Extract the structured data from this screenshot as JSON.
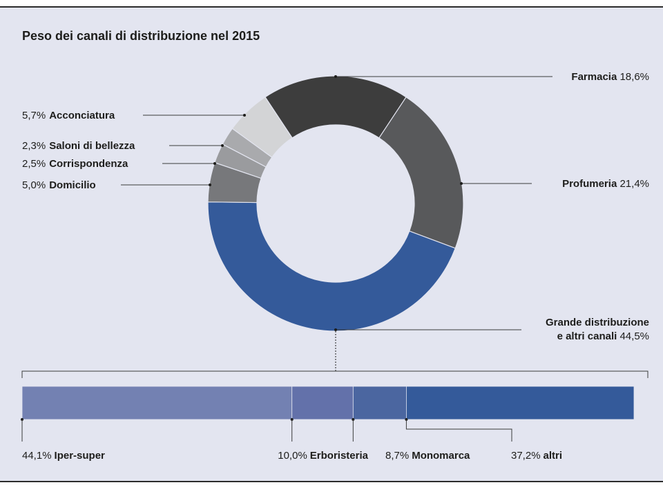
{
  "chart_data": [
    {
      "type": "pie",
      "subtype": "donut",
      "title": "Peso dei canali di distribuzione nel 2015",
      "categories": [
        "Farmacia",
        "Profumeria",
        "Grande distribuzione e altri canali",
        "Domicilio",
        "Corrispondenza",
        "Saloni di bellezza",
        "Acconciatura"
      ],
      "values": [
        18.6,
        21.4,
        44.5,
        5.0,
        2.5,
        2.3,
        5.7
      ],
      "value_labels": [
        "18,6%",
        "21,4%",
        "44,5%",
        "5,0%",
        "2,5%",
        "2,3%",
        "5,7%"
      ],
      "label_lines": [
        [
          "Farmacia"
        ],
        [
          "Profumeria"
        ],
        [
          "Grande distribuzione",
          "e altri canali"
        ],
        [
          "Domicilio"
        ],
        [
          "Corrispondenza"
        ],
        [
          "Saloni di bellezza"
        ],
        [
          "Acconciatura"
        ]
      ],
      "colors": [
        "#3d3d3d",
        "#58595b",
        "#345a9a",
        "#77787b",
        "#9a9b9e",
        "#a9aaad",
        "#d3d4d6"
      ]
    },
    {
      "type": "bar",
      "subtype": "stacked-horizontal",
      "breakdown_of": "Grande distribuzione e altri canali",
      "categories": [
        "Iper-super",
        "Erboristeria",
        "Monomarca",
        "altri"
      ],
      "values": [
        44.1,
        10.0,
        8.7,
        37.2
      ],
      "value_labels": [
        "44,1%",
        "10,0%",
        "8,7%",
        "37,2%"
      ],
      "colors": [
        "#7381b2",
        "#6371aa",
        "#4b66a0",
        "#345a9a"
      ]
    }
  ],
  "colors": {
    "background": "#e3e5f0",
    "rule": "#2b2b2b"
  }
}
